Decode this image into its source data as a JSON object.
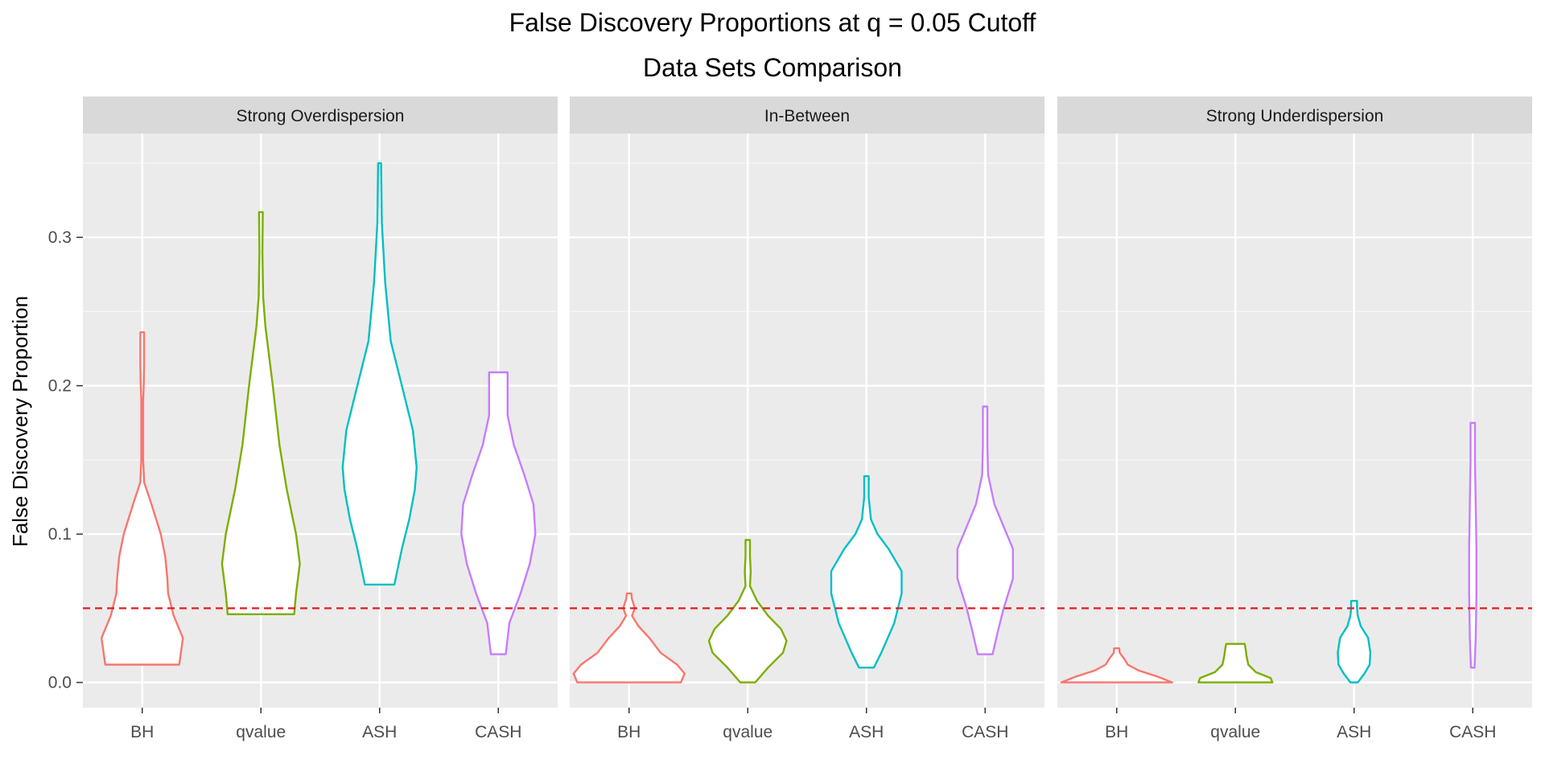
{
  "chart_data": {
    "type": "violin",
    "title": "False Discovery Proportions at q = 0.05 Cutoff",
    "subtitle": "Data Sets Comparison",
    "xlabel": "",
    "ylabel": "False Discovery Proportion",
    "ylim": [
      -0.017,
      0.37
    ],
    "yticks": [
      0.0,
      0.1,
      0.2,
      0.3
    ],
    "ytick_labels": [
      "0.0",
      "0.1",
      "0.2",
      "0.3"
    ],
    "grid": true,
    "legend": "none",
    "reference_line": {
      "y": 0.05,
      "style": "dashed",
      "color": "#e41a1c"
    },
    "categories": [
      "BH",
      "qvalue",
      "ASH",
      "CASH"
    ],
    "colors": {
      "BH": "#F8766D",
      "qvalue": "#7CAE00",
      "ASH": "#00BFC4",
      "CASH": "#C77CFF"
    },
    "panels": [
      {
        "name": "Strong Overdispersion",
        "violins": [
          {
            "method": "BH",
            "min": 0.012,
            "max": 0.236,
            "profile": [
              [
                0.012,
                1.0
              ],
              [
                0.03,
                1.1
              ],
              [
                0.045,
                0.85
              ],
              [
                0.06,
                0.7
              ],
              [
                0.07,
                0.68
              ],
              [
                0.085,
                0.62
              ],
              [
                0.1,
                0.5
              ],
              [
                0.12,
                0.25
              ],
              [
                0.135,
                0.05
              ],
              [
                0.15,
                0.025
              ],
              [
                0.19,
                0.025
              ],
              [
                0.2,
                0.04
              ],
              [
                0.215,
                0.05
              ],
              [
                0.236,
                0.05
              ]
            ]
          },
          {
            "method": "qvalue",
            "min": 0.046,
            "max": 0.317,
            "profile": [
              [
                0.046,
                0.9
              ],
              [
                0.06,
                0.95
              ],
              [
                0.08,
                1.05
              ],
              [
                0.1,
                0.95
              ],
              [
                0.13,
                0.7
              ],
              [
                0.16,
                0.5
              ],
              [
                0.2,
                0.32
              ],
              [
                0.24,
                0.12
              ],
              [
                0.26,
                0.06
              ],
              [
                0.29,
                0.04
              ],
              [
                0.317,
                0.05
              ]
            ]
          },
          {
            "method": "ASH",
            "min": 0.066,
            "max": 0.35,
            "profile": [
              [
                0.066,
                0.4
              ],
              [
                0.09,
                0.6
              ],
              [
                0.11,
                0.8
              ],
              [
                0.13,
                0.95
              ],
              [
                0.145,
                1.0
              ],
              [
                0.17,
                0.9
              ],
              [
                0.2,
                0.6
              ],
              [
                0.23,
                0.3
              ],
              [
                0.27,
                0.15
              ],
              [
                0.31,
                0.06
              ],
              [
                0.35,
                0.04
              ]
            ]
          },
          {
            "method": "CASH",
            "min": 0.019,
            "max": 0.209,
            "profile": [
              [
                0.019,
                0.2
              ],
              [
                0.04,
                0.3
              ],
              [
                0.06,
                0.6
              ],
              [
                0.08,
                0.85
              ],
              [
                0.1,
                1.0
              ],
              [
                0.12,
                0.95
              ],
              [
                0.14,
                0.7
              ],
              [
                0.16,
                0.42
              ],
              [
                0.18,
                0.25
              ],
              [
                0.195,
                0.25
              ],
              [
                0.209,
                0.25
              ]
            ]
          }
        ]
      },
      {
        "name": "In-Between",
        "violins": [
          {
            "method": "BH",
            "min": 0.0,
            "max": 0.06,
            "profile": [
              [
                0.0,
                1.4
              ],
              [
                0.006,
                1.5
              ],
              [
                0.012,
                1.3
              ],
              [
                0.02,
                0.85
              ],
              [
                0.03,
                0.55
              ],
              [
                0.038,
                0.25
              ],
              [
                0.045,
                0.08
              ],
              [
                0.05,
                0.16
              ],
              [
                0.056,
                0.08
              ],
              [
                0.06,
                0.06
              ]
            ]
          },
          {
            "method": "qvalue",
            "min": 0.0,
            "max": 0.096,
            "profile": [
              [
                0.0,
                0.2
              ],
              [
                0.01,
                0.55
              ],
              [
                0.02,
                0.95
              ],
              [
                0.028,
                1.05
              ],
              [
                0.036,
                0.9
              ],
              [
                0.045,
                0.55
              ],
              [
                0.055,
                0.25
              ],
              [
                0.065,
                0.06
              ],
              [
                0.075,
                0.08
              ],
              [
                0.085,
                0.06
              ],
              [
                0.096,
                0.06
              ]
            ]
          },
          {
            "method": "ASH",
            "min": 0.01,
            "max": 0.139,
            "profile": [
              [
                0.01,
                0.2
              ],
              [
                0.02,
                0.4
              ],
              [
                0.04,
                0.75
              ],
              [
                0.06,
                0.95
              ],
              [
                0.075,
                0.95
              ],
              [
                0.09,
                0.6
              ],
              [
                0.1,
                0.3
              ],
              [
                0.11,
                0.12
              ],
              [
                0.125,
                0.06
              ],
              [
                0.139,
                0.06
              ]
            ]
          },
          {
            "method": "CASH",
            "min": 0.019,
            "max": 0.186,
            "profile": [
              [
                0.019,
                0.2
              ],
              [
                0.035,
                0.35
              ],
              [
                0.05,
                0.5
              ],
              [
                0.07,
                0.75
              ],
              [
                0.09,
                0.75
              ],
              [
                0.105,
                0.5
              ],
              [
                0.12,
                0.25
              ],
              [
                0.14,
                0.08
              ],
              [
                0.16,
                0.06
              ],
              [
                0.186,
                0.06
              ]
            ]
          }
        ]
      },
      {
        "name": "Strong Underdispersion",
        "violins": [
          {
            "method": "BH",
            "min": 0.0,
            "max": 0.023,
            "profile": [
              [
                0.0,
                1.5
              ],
              [
                0.004,
                1.1
              ],
              [
                0.008,
                0.6
              ],
              [
                0.012,
                0.3
              ],
              [
                0.016,
                0.2
              ],
              [
                0.02,
                0.08
              ],
              [
                0.023,
                0.07
              ]
            ]
          },
          {
            "method": "qvalue",
            "min": 0.0,
            "max": 0.026,
            "profile": [
              [
                0.0,
                1.0
              ],
              [
                0.003,
                0.95
              ],
              [
                0.007,
                0.55
              ],
              [
                0.012,
                0.35
              ],
              [
                0.018,
                0.3
              ],
              [
                0.022,
                0.28
              ],
              [
                0.026,
                0.25
              ]
            ]
          },
          {
            "method": "ASH",
            "min": 0.0,
            "max": 0.055,
            "profile": [
              [
                0.0,
                0.1
              ],
              [
                0.006,
                0.28
              ],
              [
                0.012,
                0.42
              ],
              [
                0.02,
                0.44
              ],
              [
                0.03,
                0.38
              ],
              [
                0.038,
                0.18
              ],
              [
                0.045,
                0.1
              ],
              [
                0.05,
                0.08
              ],
              [
                0.055,
                0.08
              ]
            ]
          },
          {
            "method": "CASH",
            "min": 0.01,
            "max": 0.175,
            "profile": [
              [
                0.01,
                0.05
              ],
              [
                0.03,
                0.08
              ],
              [
                0.06,
                0.1
              ],
              [
                0.09,
                0.1
              ],
              [
                0.12,
                0.08
              ],
              [
                0.15,
                0.06
              ],
              [
                0.175,
                0.06
              ]
            ]
          }
        ]
      }
    ]
  }
}
